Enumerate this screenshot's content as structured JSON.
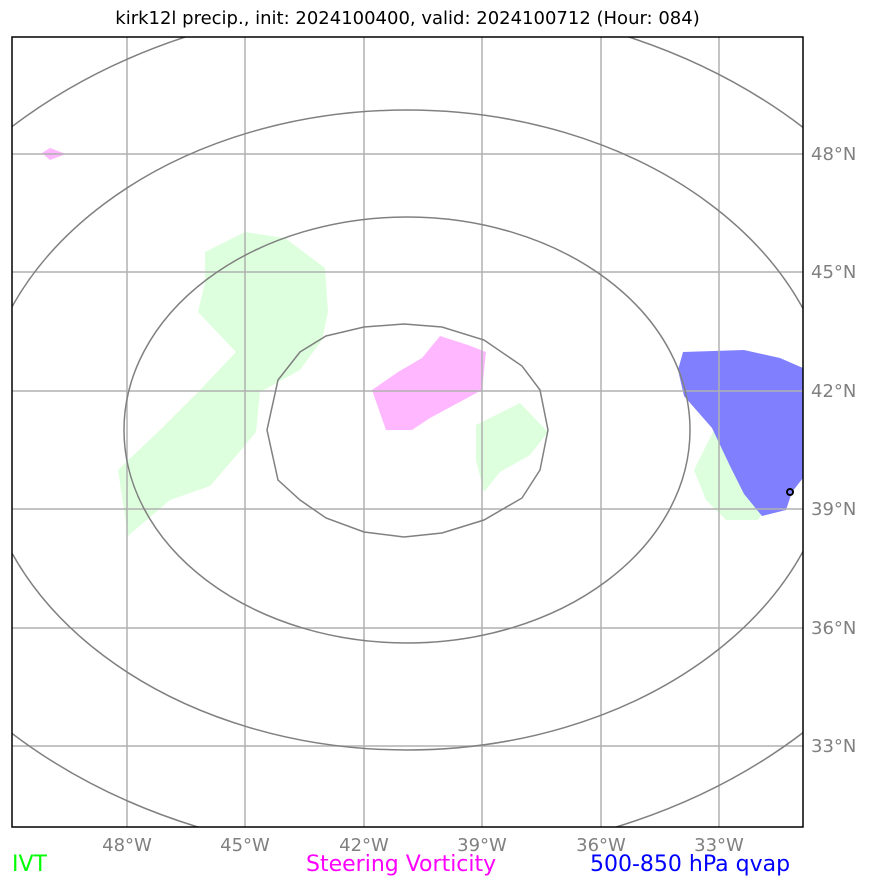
{
  "title": "kirk12l precip., init: 2024100400, valid: 2024100712 (Hour: 084)",
  "map": {
    "lon_ticks": [
      "48°W",
      "45°W",
      "42°W",
      "39°W",
      "36°W",
      "33°W"
    ],
    "lat_ticks": [
      "48°N",
      "45°N",
      "42°N",
      "39°N",
      "36°N",
      "33°N"
    ],
    "gridline_color": "#808080",
    "contour_color": "#808080"
  },
  "fields": {
    "ivt": {
      "color": "#ddffdd"
    },
    "steering_vorticity": {
      "color": "#ffb8ff"
    },
    "qvap": {
      "color": "#8080ff"
    }
  },
  "legend": {
    "ivt": {
      "label": "IVT",
      "color": "#00ff00"
    },
    "vorticity": {
      "label": "Steering Vorticity",
      "color": "#ff00ff"
    },
    "qvap": {
      "label": "500-850 hPa qvap",
      "color": "#0000ff"
    }
  }
}
